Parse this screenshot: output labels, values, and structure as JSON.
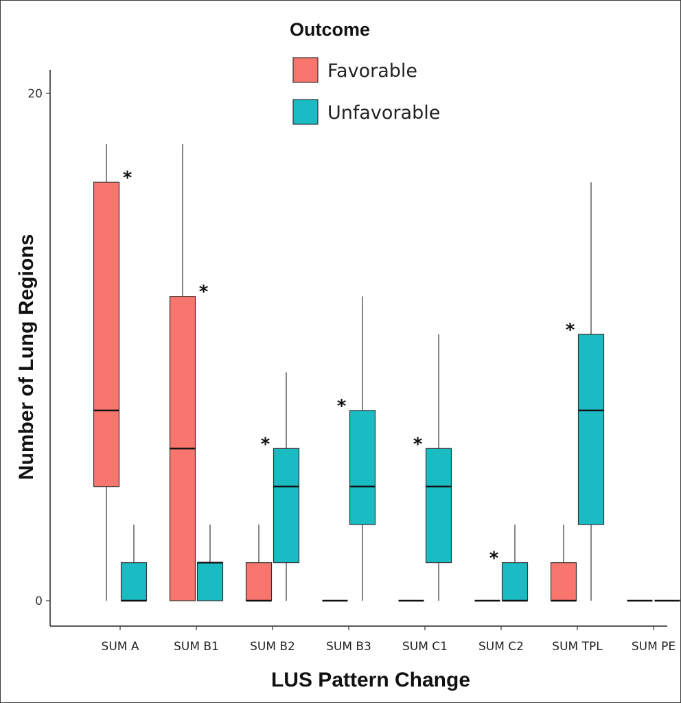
{
  "chart_data": {
    "type": "boxplot",
    "xlabel": "LUS Pattern Change",
    "ylabel": "Number of Lung Regions",
    "ylim": [
      -0.5,
      21.3
    ],
    "yticks": [
      0,
      20
    ],
    "legend": {
      "title": "Outcome",
      "placement": "top-center",
      "entries": [
        {
          "name": "Favorable",
          "color": "#F8766D"
        },
        {
          "name": "Unfavorable",
          "color": "#1BBBC4"
        }
      ]
    },
    "categories": [
      "SUM A",
      "SUM B1",
      "SUM B2",
      "SUM B3",
      "SUM C1",
      "SUM C2",
      "SUM TPL",
      "SUM PE"
    ],
    "series": [
      {
        "name": "Favorable",
        "color": "#F8766D",
        "boxes": [
          {
            "min": 0,
            "q1": 4.5,
            "median": 7.5,
            "q3": 16.5,
            "max": 18
          },
          {
            "min": 0,
            "q1": 0,
            "median": 6,
            "q3": 12,
            "max": 18
          },
          {
            "min": 0,
            "q1": 0,
            "median": 0,
            "q3": 1.5,
            "max": 3
          },
          {
            "min": 0,
            "q1": 0,
            "median": 0,
            "q3": 0,
            "max": 0
          },
          {
            "min": 0,
            "q1": 0,
            "median": 0,
            "q3": 0,
            "max": 0
          },
          {
            "min": 0,
            "q1": 0,
            "median": 0,
            "q3": 0,
            "max": 0
          },
          {
            "min": 0,
            "q1": 0,
            "median": 0,
            "q3": 1.5,
            "max": 3
          },
          {
            "min": 0,
            "q1": 0,
            "median": 0,
            "q3": 0,
            "max": 0
          }
        ]
      },
      {
        "name": "Unfavorable",
        "color": "#1BBBC4",
        "boxes": [
          {
            "min": 0,
            "q1": 0,
            "median": 0,
            "q3": 1.5,
            "max": 3
          },
          {
            "min": 0,
            "q1": 0,
            "median": 1.5,
            "q3": 1.5,
            "max": 3
          },
          {
            "min": 0,
            "q1": 1.5,
            "median": 4.5,
            "q3": 6,
            "max": 9
          },
          {
            "min": 0,
            "q1": 3,
            "median": 4.5,
            "q3": 7.5,
            "max": 12
          },
          {
            "min": 0,
            "q1": 1.5,
            "median": 4.5,
            "q3": 6,
            "max": 10.5
          },
          {
            "min": 0,
            "q1": 0,
            "median": 0,
            "q3": 1.5,
            "max": 3
          },
          {
            "min": 0,
            "q1": 3,
            "median": 7.5,
            "q3": 10.5,
            "max": 16.5
          },
          {
            "min": 0,
            "q1": 0,
            "median": 0,
            "q3": 0,
            "max": 0
          }
        ]
      }
    ],
    "annotations": [
      {
        "text": "*",
        "category": "SUM A",
        "series": "Favorable",
        "y": 16.5
      },
      {
        "text": "*",
        "category": "SUM B1",
        "series": "Favorable",
        "y": 12
      },
      {
        "text": "*",
        "category": "SUM B2",
        "series": "Unfavorable",
        "y": 6
      },
      {
        "text": "*",
        "category": "SUM B3",
        "series": "Unfavorable",
        "y": 7.5
      },
      {
        "text": "*",
        "category": "SUM C1",
        "series": "Unfavorable",
        "y": 6
      },
      {
        "text": "*",
        "category": "SUM C2",
        "series": "Unfavorable",
        "y": 1.5
      },
      {
        "text": "*",
        "category": "SUM TPL",
        "series": "Unfavorable",
        "y": 10.5
      }
    ],
    "grid": false
  }
}
